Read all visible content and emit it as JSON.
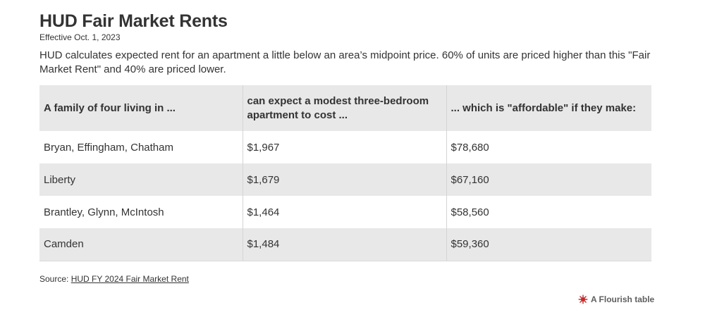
{
  "title": "HUD Fair Market Rents",
  "subtitle": "Effective Oct. 1, 2023",
  "description": "HUD calculates expected rent for an apartment a little below an area’s midpoint price. 60% of units are priced higher than this \"Fair Market Rent\" and 40% are priced lower.",
  "chart_data": {
    "type": "table",
    "columns": [
      "A family of four living in ...",
      "can expect a modest three-bedroom apartment to cost ...",
      "... which is \"affordable\" if they make:"
    ],
    "rows": [
      [
        "Bryan, Effingham, Chatham",
        "$1,967",
        "$78,680"
      ],
      [
        "Liberty",
        "$1,679",
        "$67,160"
      ],
      [
        "Brantley, Glynn, McIntosh",
        "$1,464",
        "$58,560"
      ],
      [
        "Camden",
        "$1,484",
        "$59,360"
      ]
    ]
  },
  "source": {
    "prefix": "Source: ",
    "link_text": "HUD FY 2024 Fair Market Rent"
  },
  "credit": {
    "label": "A Flourish table",
    "icon": "flourish-logo-icon",
    "color": "#c42a2a"
  },
  "colors": {
    "header_bg": "#e8e8e8",
    "stripe_bg": "#e8e8e8",
    "text": "#333333"
  }
}
